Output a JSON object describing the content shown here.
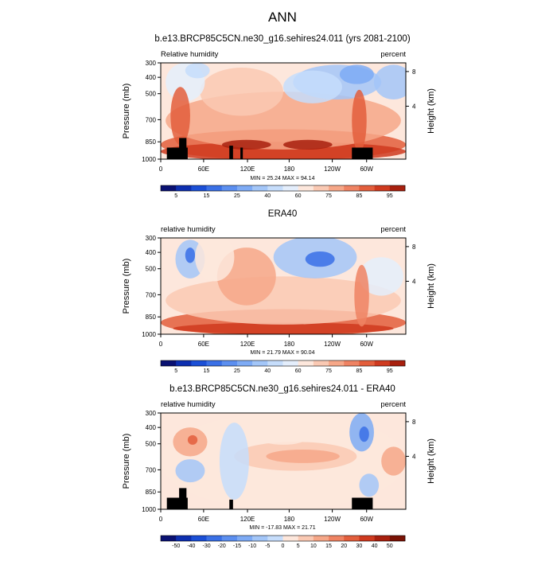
{
  "page_title": "ANN",
  "chart_data": [
    {
      "type": "heatmap",
      "title": "b.e13.BRCP85C5CN.ne30_g16.sehires24.011 (yrs 2081-2100)",
      "left_label": "Relative humidity",
      "right_label": "percent",
      "ylabel": "Pressure (mb)",
      "y2label": "Height (km)",
      "x_tick_labels": [
        "0",
        "60E",
        "120E",
        "180",
        "120W",
        "60W"
      ],
      "y_tick_labels": [
        "300",
        "400",
        "500",
        "700",
        "850",
        "1000"
      ],
      "y2_tick_labels": [
        "8",
        "4"
      ],
      "stats": "MIN = 25.24  MAX = 94.14",
      "colorbar": {
        "labels": [
          "5",
          "15",
          "25",
          "40",
          "60",
          "75",
          "85",
          "95"
        ],
        "levels": [
          5,
          10,
          15,
          20,
          25,
          30,
          40,
          50,
          60,
          70,
          75,
          80,
          85,
          90,
          95
        ],
        "colors": [
          "#0a1172",
          "#0d2fb0",
          "#1b4fd6",
          "#3a70e6",
          "#5c8ff0",
          "#7eabf5",
          "#a3c6f8",
          "#c6ddfb",
          "#e4eefc",
          "#fde7dc",
          "#fac9b3",
          "#f6a788",
          "#ef8363",
          "#e35e3c",
          "#cf3a1f",
          "#a8200e"
        ]
      },
      "topography": true
    },
    {
      "type": "heatmap",
      "title": "ERA40",
      "left_label": "relative humidity",
      "right_label": "percent",
      "ylabel": "Pressure (mb)",
      "y2label": "Height (km)",
      "x_tick_labels": [
        "0",
        "60E",
        "120E",
        "180",
        "120W",
        "60W"
      ],
      "y_tick_labels": [
        "300",
        "400",
        "500",
        "700",
        "850",
        "1000"
      ],
      "y2_tick_labels": [
        "8",
        "4"
      ],
      "stats": "MIN = 21.79  MAX = 90.04",
      "colorbar": {
        "labels": [
          "5",
          "15",
          "25",
          "40",
          "60",
          "75",
          "85",
          "95"
        ],
        "levels": [
          5,
          10,
          15,
          20,
          25,
          30,
          40,
          50,
          60,
          70,
          75,
          80,
          85,
          90,
          95
        ],
        "colors": [
          "#0a1172",
          "#0d2fb0",
          "#1b4fd6",
          "#3a70e6",
          "#5c8ff0",
          "#7eabf5",
          "#a3c6f8",
          "#c6ddfb",
          "#e4eefc",
          "#fde7dc",
          "#fac9b3",
          "#f6a788",
          "#ef8363",
          "#e35e3c",
          "#cf3a1f",
          "#a8200e"
        ]
      },
      "topography": false
    },
    {
      "type": "heatmap",
      "title": "b.e13.BRCP85C5CN.ne30_g16.sehires24.011 - ERA40",
      "left_label": "relative humidity",
      "right_label": "percent",
      "ylabel": "Pressure (mb)",
      "y2label": "Height (km)",
      "x_tick_labels": [
        "0",
        "60E",
        "120E",
        "180",
        "120W",
        "60W"
      ],
      "y_tick_labels": [
        "300",
        "400",
        "500",
        "700",
        "850",
        "1000"
      ],
      "y2_tick_labels": [
        "8",
        "4"
      ],
      "stats": "MIN = -17.83  MAX = 21.71",
      "colorbar": {
        "labels": [
          "-50",
          "-40",
          "-30",
          "-20",
          "-15",
          "-10",
          "-5",
          "0",
          "5",
          "10",
          "15",
          "20",
          "30",
          "40",
          "50"
        ],
        "levels": [
          -50,
          -40,
          -30,
          -20,
          -15,
          -10,
          -5,
          0,
          5,
          10,
          15,
          20,
          30,
          40,
          50
        ],
        "colors": [
          "#0a1172",
          "#0d2fb0",
          "#1b4fd6",
          "#3a70e6",
          "#5c8ff0",
          "#7eabf5",
          "#a3c6f8",
          "#c6ddfb",
          "#fde7dc",
          "#fac9b3",
          "#f6a788",
          "#ef8363",
          "#e35e3c",
          "#cf3a1f",
          "#a8200e",
          "#7a1205"
        ]
      },
      "topography": true
    }
  ]
}
